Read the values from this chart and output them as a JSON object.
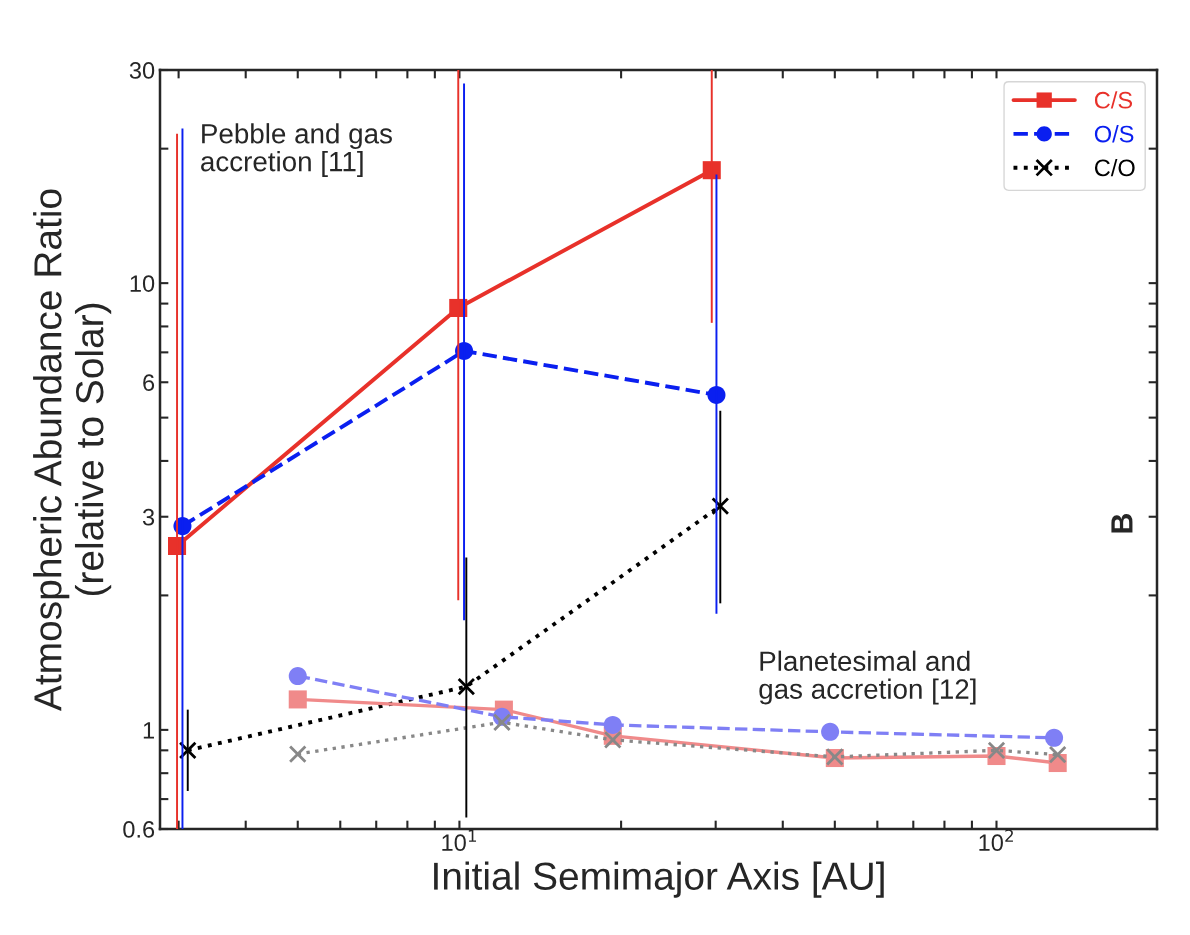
{
  "chart_data": {
    "type": "line",
    "xlabel": "Initial Semimajor Axis [AU]",
    "ylabel": "Atmospheric Abundance Ratio\n(relative to Solar)",
    "log": "xy",
    "xlim": [
      2.77,
      199
    ],
    "ylim": [
      0.6,
      30
    ],
    "xticks": [
      {
        "value": 3,
        "label": null
      },
      {
        "value": 4,
        "label": null
      },
      {
        "value": 5,
        "label": null
      },
      {
        "value": 6,
        "label": null
      },
      {
        "value": 7,
        "label": null
      },
      {
        "value": 8,
        "label": null
      },
      {
        "value": 9,
        "label": null
      },
      {
        "value": 10,
        "label": "10$^{1}$"
      },
      {
        "value": 20,
        "label": null
      },
      {
        "value": 30,
        "label": null
      },
      {
        "value": 40,
        "label": null
      },
      {
        "value": 50,
        "label": null
      },
      {
        "value": 60,
        "label": null
      },
      {
        "value": 70,
        "label": null
      },
      {
        "value": 80,
        "label": null
      },
      {
        "value": 90,
        "label": null
      },
      {
        "value": 100,
        "label": "10$^{2}$"
      }
    ],
    "yticks": [
      0.6,
      {
        "value": 0.7,
        "label": null
      },
      {
        "value": 0.8,
        "label": null
      },
      {
        "value": 0.9,
        "label": null
      },
      1,
      {
        "value": 2,
        "label": null
      },
      3,
      {
        "value": 4,
        "label": null
      },
      {
        "value": 5,
        "label": null
      },
      6,
      {
        "value": 7,
        "label": null
      },
      {
        "value": 8,
        "label": null
      },
      {
        "value": 9,
        "label": null
      },
      10,
      {
        "value": 20,
        "label": null
      },
      30
    ],
    "grid": false,
    "legend": "top right",
    "series": [
      {
        "name": "C/S",
        "color": "#e8312a",
        "marker": "square",
        "line_style": "solid",
        "x": [
          2.98,
          9.95,
          29.5
        ],
        "values": [
          2.58,
          8.8,
          17.9
        ],
        "errors": [
          [
            0.6,
            21.6
          ],
          [
            1.95,
            30
          ],
          [
            8.15,
            30
          ]
        ]
      },
      {
        "name": "O/S",
        "color": "#0a1ff0",
        "marker": "circle",
        "line_style": "dashed",
        "x": [
          3.05,
          10.2,
          30.1
        ],
        "values": [
          2.86,
          7.05,
          5.62
        ],
        "errors": [
          [
            0.6,
            22.2
          ],
          [
            1.76,
            28
          ],
          [
            1.82,
            17.5
          ]
        ]
      },
      {
        "name": "C/O",
        "color": "#000000",
        "marker": "cross",
        "line_style": "dotted",
        "x": [
          3.12,
          10.3,
          30.6
        ],
        "values": [
          0.9,
          1.25,
          3.17
        ],
        "errors": [
          [
            0.73,
            1.11
          ],
          [
            0.637,
            2.43
          ],
          [
            1.92,
            5.18
          ]
        ]
      },
      {
        "color": "#f08a8a",
        "marker": "square",
        "line_style": "solid",
        "x": [
          5,
          12.1,
          19.3,
          50,
          100,
          130
        ],
        "values": [
          1.17,
          1.11,
          0.97,
          0.865,
          0.874,
          0.843
        ]
      },
      {
        "color": "#7f7ff5",
        "marker": "circle",
        "line_style": "dashed",
        "x": [
          5,
          12,
          19.3,
          49,
          128
        ],
        "values": [
          1.32,
          1.07,
          1.026,
          0.99,
          0.96
        ]
      },
      {
        "color": "#888888",
        "marker": "cross",
        "line_style": "dotted",
        "x": [
          5,
          12,
          19.3,
          50,
          100,
          130
        ],
        "values": [
          0.883,
          1.04,
          0.95,
          0.87,
          0.9,
          0.88
        ]
      }
    ],
    "annotations": [
      "Pebble and gas\naccretion [11]",
      "Planetesimal and\ngas accretion [12]",
      "B"
    ]
  }
}
